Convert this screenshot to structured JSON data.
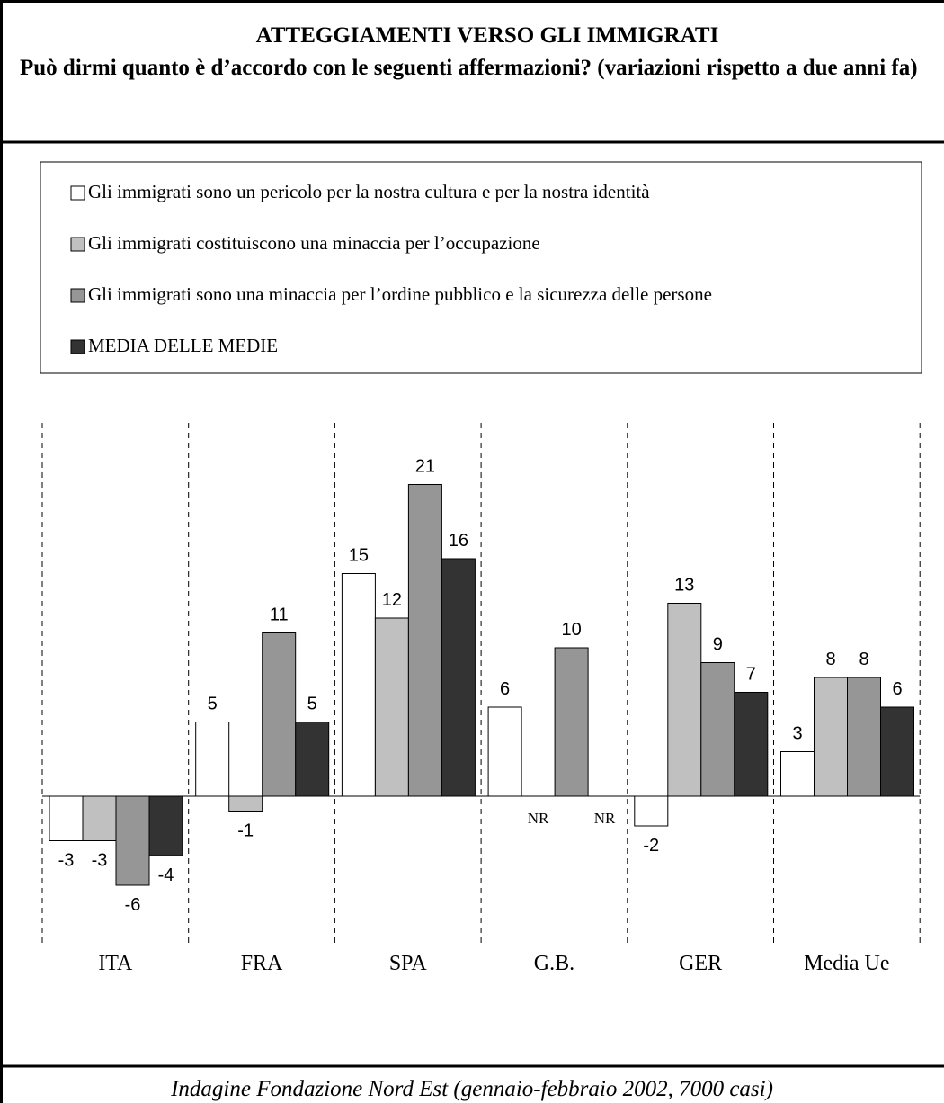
{
  "chart_data": {
    "type": "bar",
    "title": "ATTEGGIAMENTI VERSO GLI IMMIGRATI",
    "subtitle": "Può dirmi quanto è d’accordo con le seguenti affermazioni? (variazioni rispetto a due anni fa)",
    "categories": [
      "ITA",
      "FRA",
      "SPA",
      "G.B.",
      "GER",
      "Media Ue"
    ],
    "series": [
      {
        "name": "Gli immigrati sono un pericolo per la nostra cultura e per la nostra identità",
        "color": "#ffffff",
        "values": [
          -3,
          5,
          15,
          6,
          -2,
          3
        ]
      },
      {
        "name": "Gli immigrati costituiscono una minaccia per l’occupazione",
        "color": "#c0c0c0",
        "values": [
          -3,
          -1,
          12,
          null,
          13,
          8
        ],
        "value_labels": [
          "-3",
          "-1",
          "12",
          "NR",
          "13",
          "8"
        ]
      },
      {
        "name": "Gli immigrati sono una minaccia per l’ordine pubblico e la sicurezza delle persone",
        "color": "#969696",
        "values": [
          -6,
          11,
          21,
          10,
          9,
          8
        ]
      },
      {
        "name": "MEDIA DELLE MEDIE",
        "color": "#333333",
        "values": [
          -4,
          5,
          16,
          null,
          7,
          6
        ],
        "value_labels": [
          "-4",
          "5",
          "16",
          "NR",
          "7",
          "6"
        ]
      }
    ],
    "source": "Indagine Fondazione Nord Est (gennaio-febbraio 2002, 7000 casi)"
  }
}
